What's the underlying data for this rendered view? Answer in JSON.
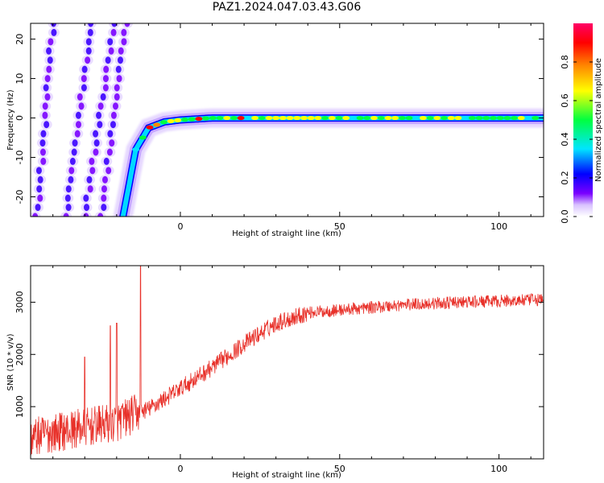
{
  "figure": {
    "title": "PAZ1.2024.047.03.43.G06"
  },
  "chart_data": [
    {
      "type": "heatmap",
      "xlabel": "Height of straight line (km)",
      "ylabel": "Frequency (Hz)",
      "xlim": [
        -47,
        114
      ],
      "ylim": [
        -25,
        24
      ],
      "xticks": [
        0,
        50,
        100
      ],
      "yticks": [
        -20,
        -10,
        0,
        10,
        20
      ],
      "colorbar": {
        "label": "Normalized spectral amplitude",
        "range": [
          0,
          1
        ],
        "ticks": [
          0.0,
          0.2,
          0.4,
          0.6,
          0.8
        ],
        "colormap": [
          "#ffffff",
          "#e8d8ff",
          "#7a00ff",
          "#0000ff",
          "#00e5ff",
          "#00ff40",
          "#ffff00",
          "#ff8800",
          "#ff0000",
          "#ff0066"
        ]
      },
      "features": [
        {
          "name_hint": "main-tone",
          "segments": [
            [
              -18,
              -25
            ],
            [
              -14,
              -8
            ],
            [
              -10,
              -2.5
            ],
            [
              -5,
              -1
            ],
            [
              0,
              -0.5
            ],
            [
              10,
              0
            ],
            [
              114,
              0
            ]
          ],
          "width_hz": 1.5,
          "peak": 0.85
        },
        {
          "name_hint": "aliased-traces",
          "slanted_tracks": [
            [
              -45,
              -25,
              -40,
              24
            ],
            [
              -36,
              -25,
              -28,
              24
            ],
            [
              -30,
              -25,
              -21,
              24
            ],
            [
              -25,
              -25,
              -17,
              24
            ]
          ],
          "peak": 0.45
        }
      ]
    },
    {
      "type": "line",
      "xlabel": "Height of straight line (km)",
      "ylabel": "SNR (10 * v/v)",
      "xlim": [
        -47,
        114
      ],
      "ylim": [
        0,
        3700
      ],
      "xticks": [
        0,
        50,
        100
      ],
      "yticks": [
        1000,
        2000,
        3000
      ],
      "color": "#e8312a",
      "trend": {
        "x": [
          -47,
          -40,
          -30,
          -20,
          -13,
          -10,
          0,
          10,
          20,
          30,
          40,
          50,
          60,
          70,
          80,
          90,
          100,
          114
        ],
        "y": [
          400,
          500,
          600,
          700,
          900,
          950,
          1350,
          1750,
          2200,
          2600,
          2800,
          2850,
          2900,
          2950,
          2980,
          3000,
          3020,
          3050
        ]
      },
      "spikes": [
        {
          "x": -30,
          "y": 1950
        },
        {
          "x": -22,
          "y": 2550
        },
        {
          "x": -20,
          "y": 2600
        },
        {
          "x": -12.5,
          "y": 3700
        }
      ]
    }
  ]
}
